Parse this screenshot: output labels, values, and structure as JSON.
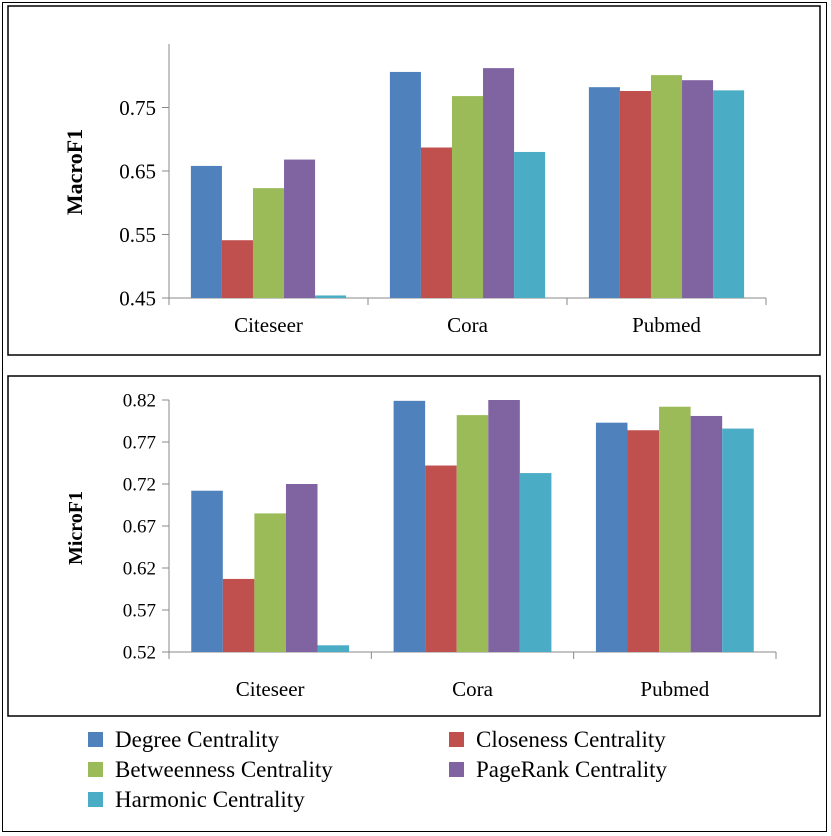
{
  "colors": {
    "degree": "#4F81BD",
    "closeness": "#C0504D",
    "betweenness": "#9BBB59",
    "pagerank": "#8064A2",
    "harmonic": "#4BACC6"
  },
  "legend": {
    "items": [
      {
        "label": "Degree Centrality",
        "color": "#4F81BD"
      },
      {
        "label": "Closeness Centrality",
        "color": "#C0504D"
      },
      {
        "label": "Betweenness Centrality",
        "color": "#9BBB59"
      },
      {
        "label": "PageRank Centrality",
        "color": "#8064A2"
      },
      {
        "label": "Harmonic Centrality",
        "color": "#4BACC6"
      }
    ]
  },
  "chart_data": [
    {
      "type": "bar",
      "ylabel": "MacroF1",
      "categories": [
        "Citeseer",
        "Cora",
        "Pubmed"
      ],
      "ylim": [
        0.45,
        0.85
      ],
      "yticks": [
        0.45,
        0.55,
        0.65,
        0.75
      ],
      "ytick_labels": [
        "0.45",
        "0.55",
        "0.65",
        "0.75"
      ],
      "grid": false,
      "series": [
        {
          "name": "Degree Centrality",
          "color": "#4F81BD",
          "values": [
            0.658,
            0.806,
            0.782
          ]
        },
        {
          "name": "Closeness Centrality",
          "color": "#C0504D",
          "values": [
            0.541,
            0.687,
            0.776
          ]
        },
        {
          "name": "Betweenness Centrality",
          "color": "#9BBB59",
          "values": [
            0.623,
            0.768,
            0.801
          ]
        },
        {
          "name": "PageRank Centrality",
          "color": "#8064A2",
          "values": [
            0.668,
            0.812,
            0.793
          ]
        },
        {
          "name": "Harmonic Centrality",
          "color": "#4BACC6",
          "values": [
            0.454,
            0.68,
            0.777
          ]
        }
      ]
    },
    {
      "type": "bar",
      "ylabel": "MicroF1",
      "categories": [
        "Citeseer",
        "Cora",
        "Pubmed"
      ],
      "ylim": [
        0.52,
        0.82
      ],
      "yticks": [
        0.52,
        0.57,
        0.62,
        0.67,
        0.72,
        0.77,
        0.82
      ],
      "ytick_labels": [
        "0.52",
        "0.57",
        "0.62",
        "0.67",
        "0.72",
        "0.77",
        "0.82"
      ],
      "grid": false,
      "series": [
        {
          "name": "Degree Centrality",
          "color": "#4F81BD",
          "values": [
            0.712,
            0.819,
            0.793
          ]
        },
        {
          "name": "Closeness Centrality",
          "color": "#C0504D",
          "values": [
            0.607,
            0.742,
            0.784
          ]
        },
        {
          "name": "Betweenness Centrality",
          "color": "#9BBB59",
          "values": [
            0.685,
            0.802,
            0.812
          ]
        },
        {
          "name": "PageRank Centrality",
          "color": "#8064A2",
          "values": [
            0.72,
            0.82,
            0.801
          ]
        },
        {
          "name": "Harmonic Centrality",
          "color": "#4BACC6",
          "values": [
            0.528,
            0.733,
            0.786
          ]
        }
      ]
    }
  ]
}
